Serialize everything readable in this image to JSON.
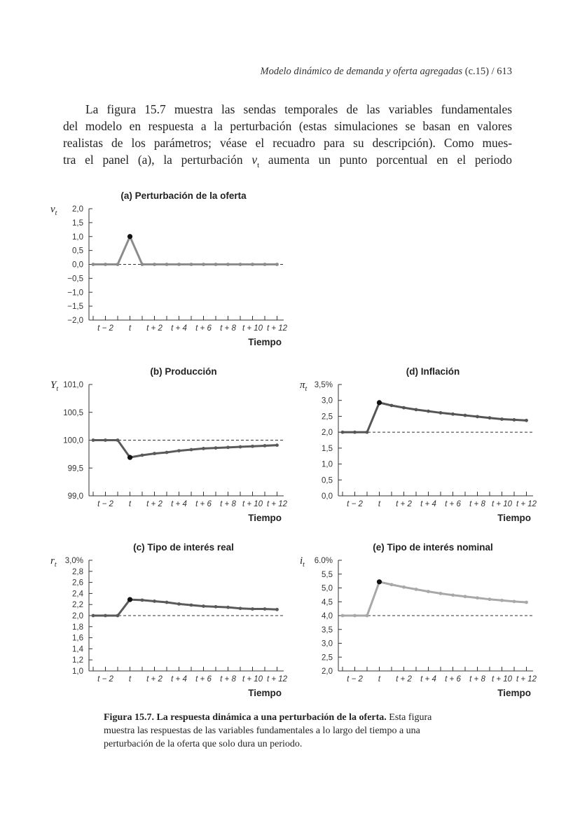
{
  "header": {
    "running_title": "Modelo dinámico de demanda y oferta agregadas",
    "chapter": "(c.15)",
    "separator": "/",
    "page_number": "613"
  },
  "body": {
    "line1": "La figura 15.7 muestra las sendas temporales de las variables fundamentales",
    "line2": "del modelo en respuesta a la perturbación (estas simulaciones se basan en valores",
    "line3": "realistas de los parámetros; véase el recuadro para su descripción). Como mues-",
    "line4a": "tra el panel (a), la perturbación",
    "line4_var": "v",
    "line4_sub": "t",
    "line4b": "aumenta un punto porcentual en el periodo"
  },
  "caption": {
    "bold": "Figura 15.7. La respuesta dinámica a una perturbación de la oferta.",
    "line1_rest": "Esta figura",
    "line2": "muestra las respuestas de las variables fundamentales a lo largo del tiempo a una",
    "line3": "perturbación de la oferta que solo dura un periodo."
  },
  "chart_data": [
    {
      "id": "a",
      "type": "line",
      "title": "(a) Perturbación de la oferta",
      "ylabel_symbol": "v",
      "ylabel_sub": "t",
      "xlabel": "Tiempo",
      "x": [
        "t−3",
        "t−2",
        "t−1",
        "t",
        "t+1",
        "t+2",
        "t+3",
        "t+4",
        "t+5",
        "t+6",
        "t+7",
        "t+8",
        "t+9",
        "t+10",
        "t+11",
        "t+12"
      ],
      "xtick_labels": [
        "t − 2",
        "t",
        "t + 2",
        "t + 4",
        "t + 6",
        "t + 8",
        "t + 10",
        "t + 12"
      ],
      "ylim": [
        -2.0,
        2.0
      ],
      "yticks": [
        2.0,
        1.5,
        1.0,
        0.5,
        0.0,
        -0.5,
        -1.0,
        -1.5,
        -2.0
      ],
      "ytick_labels": [
        "2,0",
        "1,5",
        "1,0",
        "0,5",
        "0,0",
        "−0,5",
        "−1,0",
        "−1,5",
        "−2,0"
      ],
      "baseline": 0.0,
      "values": [
        0,
        0,
        0,
        1.0,
        0,
        0,
        0,
        0,
        0,
        0,
        0,
        0,
        0,
        0,
        0,
        0
      ],
      "color": "#8c8c8c"
    },
    {
      "id": "b",
      "type": "line",
      "title": "(b) Producción",
      "ylabel_symbol": "Y",
      "ylabel_sub": "t",
      "xlabel": "Tiempo",
      "x": [
        "t−3",
        "t−2",
        "t−1",
        "t",
        "t+1",
        "t+2",
        "t+3",
        "t+4",
        "t+5",
        "t+6",
        "t+7",
        "t+8",
        "t+9",
        "t+10",
        "t+11",
        "t+12"
      ],
      "xtick_labels": [
        "t − 2",
        "t",
        "t + 2",
        "t + 4",
        "t + 6",
        "t + 8",
        "t + 10",
        "t + 12"
      ],
      "ylim": [
        99.0,
        101.0
      ],
      "yticks": [
        101.0,
        100.5,
        100.0,
        99.5,
        99.0
      ],
      "ytick_labels": [
        "101,0",
        "100,5",
        "100,0",
        "99,5",
        "99,0"
      ],
      "baseline": 100.0,
      "values": [
        100,
        100,
        100,
        99.69,
        99.73,
        99.76,
        99.78,
        99.81,
        99.83,
        99.85,
        99.86,
        99.87,
        99.88,
        99.89,
        99.9,
        99.91
      ],
      "color": "#5a5a5a"
    },
    {
      "id": "d",
      "type": "line",
      "title": "(d) Inflación",
      "ylabel_symbol": "π",
      "ylabel_sub": "t",
      "xlabel": "Tiempo",
      "x": [
        "t−3",
        "t−2",
        "t−1",
        "t",
        "t+1",
        "t+2",
        "t+3",
        "t+4",
        "t+5",
        "t+6",
        "t+7",
        "t+8",
        "t+9",
        "t+10",
        "t+11",
        "t+12"
      ],
      "xtick_labels": [
        "t − 2",
        "t",
        "t + 2",
        "t + 4",
        "t + 6",
        "t + 8",
        "t + 10",
        "t + 12"
      ],
      "ylim": [
        0.0,
        3.5
      ],
      "yticks": [
        3.5,
        3.0,
        2.5,
        2.0,
        1.5,
        1.0,
        0.5,
        0.0
      ],
      "ytick_labels": [
        "3,5%",
        "3,0",
        "2,5",
        "2,0",
        "1,5",
        "1,0",
        "0,5",
        "0,0"
      ],
      "baseline": 2.0,
      "values": [
        2,
        2,
        2,
        2.93,
        2.84,
        2.77,
        2.71,
        2.66,
        2.61,
        2.57,
        2.53,
        2.49,
        2.45,
        2.41,
        2.39,
        2.37
      ],
      "color": "#555555"
    },
    {
      "id": "c",
      "type": "line",
      "title": "(c) Tipo de interés real",
      "ylabel_symbol": "r",
      "ylabel_sub": "t",
      "xlabel": "Tiempo",
      "x": [
        "t−3",
        "t−2",
        "t−1",
        "t",
        "t+1",
        "t+2",
        "t+3",
        "t+4",
        "t+5",
        "t+6",
        "t+7",
        "t+8",
        "t+9",
        "t+10",
        "t+11",
        "t+12"
      ],
      "xtick_labels": [
        "t − 2",
        "t",
        "t + 2",
        "t + 4",
        "t + 6",
        "t + 8",
        "t + 10",
        "t + 12"
      ],
      "ylim": [
        1.0,
        3.0
      ],
      "yticks": [
        3.0,
        2.8,
        2.6,
        2.4,
        2.2,
        2.0,
        1.8,
        1.6,
        1.4,
        1.2,
        1.0
      ],
      "ytick_labels": [
        "3,0%",
        "2,8",
        "2,6",
        "2,4",
        "2,2",
        "2,0",
        "1,8",
        "1,6",
        "1,4",
        "1,2",
        "1,0"
      ],
      "baseline": 2.0,
      "values": [
        2,
        2,
        2,
        2.29,
        2.28,
        2.26,
        2.24,
        2.21,
        2.19,
        2.17,
        2.16,
        2.15,
        2.13,
        2.12,
        2.12,
        2.11
      ],
      "color": "#5a5a5a"
    },
    {
      "id": "e",
      "type": "line",
      "title": "(e) Tipo de interés nominal",
      "ylabel_symbol": "i",
      "ylabel_sub": "t",
      "xlabel": "Tiempo",
      "x": [
        "t−3",
        "t−2",
        "t−1",
        "t",
        "t+1",
        "t+2",
        "t+3",
        "t+4",
        "t+5",
        "t+6",
        "t+7",
        "t+8",
        "t+9",
        "t+10",
        "t+11",
        "t+12"
      ],
      "xtick_labels": [
        "t − 2",
        "t",
        "t + 2",
        "t + 4",
        "t + 6",
        "t + 8",
        "t + 10",
        "t + 12"
      ],
      "ylim": [
        2.0,
        6.0
      ],
      "yticks": [
        6.0,
        5.5,
        5.0,
        4.5,
        4.0,
        3.5,
        3.0,
        2.5,
        2.0
      ],
      "ytick_labels": [
        "6.0%",
        "5,5",
        "5,0",
        "4,5",
        "4,0",
        "3,5",
        "3,0",
        "2,5",
        "2,0"
      ],
      "baseline": 4.0,
      "values": [
        4,
        4,
        4,
        5.22,
        5.12,
        5.03,
        4.95,
        4.87,
        4.8,
        4.74,
        4.69,
        4.64,
        4.59,
        4.55,
        4.51,
        4.48
      ],
      "color": "#a8a8a8"
    }
  ]
}
